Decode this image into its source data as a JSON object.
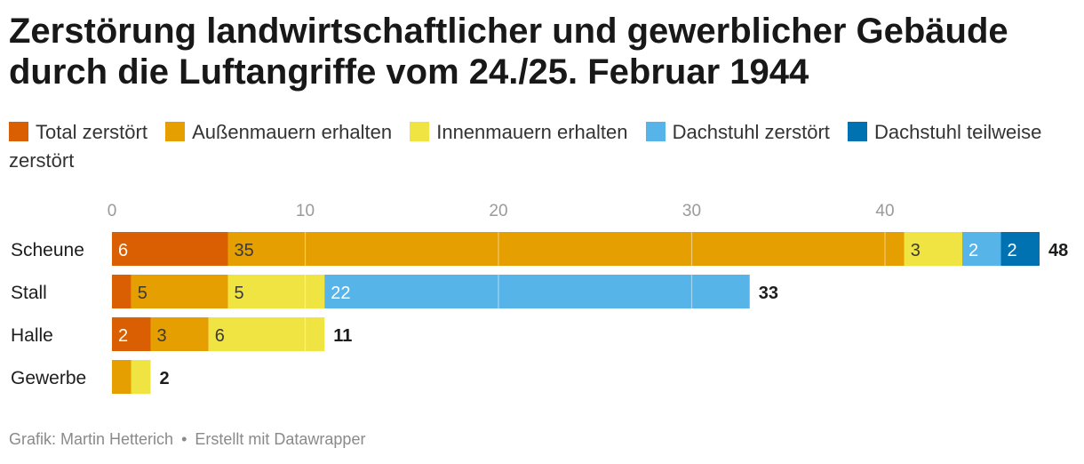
{
  "title": "Zerstörung landwirtschaftlicher und gewerblicher Gebäude durch die Luftangriffe vom 24./25. Februar 1944",
  "legend": [
    {
      "label": "Total zerstört",
      "color": "#d95f02"
    },
    {
      "label": "Außenmauern erhalten",
      "color": "#e69f00"
    },
    {
      "label": "Innenmauern erhalten",
      "color": "#f0e442"
    },
    {
      "label": "Dachstuhl zerstört",
      "color": "#56b4e9"
    },
    {
      "label": "Dachstuhl teilweise zerstört",
      "color": "#0072b2"
    }
  ],
  "chart_data": {
    "type": "bar",
    "orientation": "horizontal",
    "stacked": true,
    "categories": [
      "Scheune",
      "Stall",
      "Halle",
      "Gewerbe"
    ],
    "series": [
      {
        "name": "Total zerstört",
        "color": "#d95f02",
        "values": [
          6,
          1,
          2,
          0
        ]
      },
      {
        "name": "Außenmauern erhalten",
        "color": "#e69f00",
        "values": [
          35,
          5,
          3,
          1
        ]
      },
      {
        "name": "Innenmauern erhalten",
        "color": "#f0e442",
        "values": [
          3,
          5,
          6,
          1
        ]
      },
      {
        "name": "Dachstuhl zerstört",
        "color": "#56b4e9",
        "values": [
          2,
          22,
          0,
          0
        ]
      },
      {
        "name": "Dachstuhl teilweise zerstört",
        "color": "#0072b2",
        "values": [
          2,
          0,
          0,
          0
        ]
      }
    ],
    "totals": [
      48,
      33,
      11,
      2
    ],
    "xticks": [
      0,
      10,
      20,
      30,
      40
    ],
    "xlim": [
      0,
      48
    ],
    "grid": true,
    "legend_position": "top"
  },
  "footer": {
    "credit": "Grafik: Martin Hetterich",
    "separator": "•",
    "tool": "Erstellt mit Datawrapper"
  }
}
